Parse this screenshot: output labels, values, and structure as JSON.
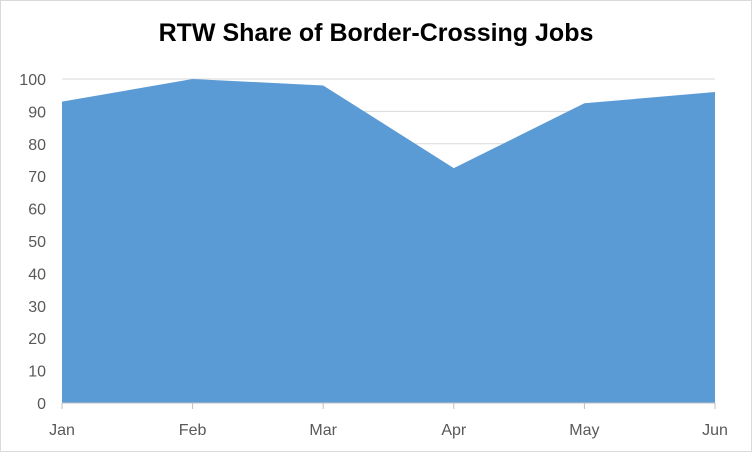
{
  "chart_data": {
    "type": "area",
    "title": "RTW Share of Border-Crossing Jobs",
    "xlabel": "",
    "ylabel": "",
    "categories": [
      "Jan",
      "Feb",
      "Mar",
      "Apr",
      "May",
      "Jun"
    ],
    "values": [
      93,
      100,
      98,
      72.5,
      92.5,
      96
    ],
    "ylim": [
      0,
      100
    ],
    "yticks": [
      0,
      10,
      20,
      30,
      40,
      50,
      60,
      70,
      80,
      90,
      100
    ],
    "grid": true,
    "legend": "none",
    "colors": {
      "area": "#5b9bd5",
      "grid": "#d9d9d9",
      "axis": "#bfbfbf",
      "tick_text": "#595959"
    }
  }
}
